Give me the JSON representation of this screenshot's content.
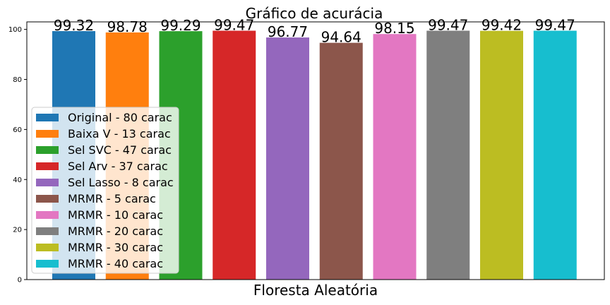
{
  "chart_data": {
    "type": "bar",
    "title": "Gráfico de acurácia",
    "xlabel": "Floresta Aleatória",
    "ylabel": "",
    "ylim": [
      0,
      103
    ],
    "yticks": [
      0,
      20,
      40,
      60,
      80,
      100
    ],
    "grid": false,
    "legend_position": "lower-left",
    "series": [
      {
        "name": "Original - 80 carac",
        "value": 99.32,
        "label": "99.32",
        "color": "#1f77b4"
      },
      {
        "name": "Baixa V - 13 carac",
        "value": 98.78,
        "label": "98.78",
        "color": "#ff7f0e"
      },
      {
        "name": "Sel SVC - 47 carac",
        "value": 99.29,
        "label": "99.29",
        "color": "#2ca02c"
      },
      {
        "name": "Sel Arv - 37 carac",
        "value": 99.47,
        "label": "99.47",
        "color": "#d62728"
      },
      {
        "name": "Sel Lasso - 8 carac",
        "value": 96.77,
        "label": "96.77",
        "color": "#9467bd"
      },
      {
        "name": "MRMR - 5 carac",
        "value": 94.64,
        "label": "94.64",
        "color": "#8c564b"
      },
      {
        "name": "MRMR - 10 carac",
        "value": 98.15,
        "label": "98.15",
        "color": "#e377c2"
      },
      {
        "name": "MRMR - 20 carac",
        "value": 99.47,
        "label": "99.47",
        "color": "#7f7f7f"
      },
      {
        "name": "MRMR - 30 carac",
        "value": 99.42,
        "label": "99.42",
        "color": "#bcbd22"
      },
      {
        "name": "MRMR - 40 carac",
        "value": 99.47,
        "label": "99.47",
        "color": "#17becf"
      }
    ]
  }
}
